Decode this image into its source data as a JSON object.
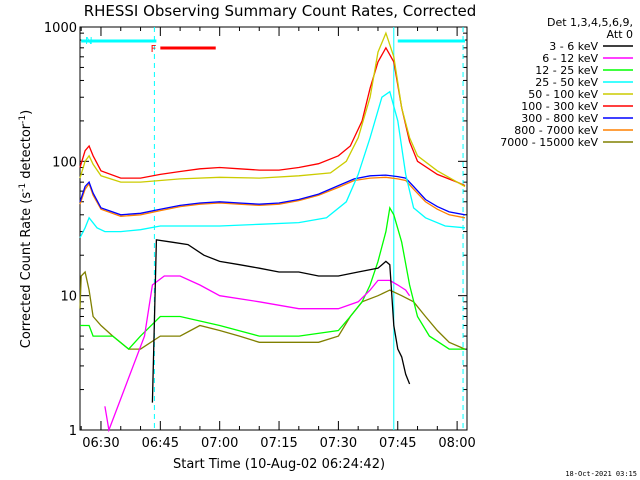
{
  "chart_data": {
    "type": "line",
    "title": "RHESSI Observing Summary Count Rates, Corrected",
    "xlabel": "Start Time (10-Aug-02 06:24:42)",
    "ylabel": "Corrected Count Rate (s",
    "ylabel_sup1": "-1",
    "ylabel_mid": " detector",
    "ylabel_sup2": "-1",
    "ylabel_end": ")",
    "y_scale": "log",
    "ylim": [
      1,
      1000
    ],
    "xlim": [
      "06:24:42",
      "08:02:30"
    ],
    "x_ticks": [
      "06:30",
      "06:45",
      "07:00",
      "07:15",
      "07:30",
      "07:45",
      "08:00"
    ],
    "y_ticks": [
      "1",
      "10",
      "100",
      "1000"
    ],
    "legend_header": [
      "Det 1,3,4,5,6,9,",
      "Att 0"
    ],
    "legend_position": "right",
    "timestamp": "18-Oct-2021 03:15",
    "flags": [
      {
        "label": "F",
        "color": "#ff0000",
        "start": "06:45",
        "end": "06:59"
      },
      {
        "label": "N",
        "color": "#00ffff",
        "start": "06:25",
        "end": "06:44"
      },
      {
        "label": "",
        "color": "#00ffff",
        "start": "07:45",
        "end": "08:02"
      }
    ],
    "vertical_lines": [
      {
        "time": "06:43:30",
        "style": "dashed",
        "color": "#00ffff"
      },
      {
        "time": "07:44:00",
        "style": "solid",
        "color": "#00ffff"
      },
      {
        "time": "08:01:30",
        "style": "dashed",
        "color": "#00ffff"
      }
    ],
    "series": [
      {
        "name": "3 - 6 keV",
        "color": "#000000",
        "points": [
          [
            "06:43",
            1.6
          ],
          [
            "06:44",
            26
          ],
          [
            "06:48",
            25
          ],
          [
            "06:52",
            24
          ],
          [
            "06:56",
            20
          ],
          [
            "07:00",
            18
          ],
          [
            "07:05",
            17
          ],
          [
            "07:10",
            16
          ],
          [
            "07:15",
            15
          ],
          [
            "07:20",
            15
          ],
          [
            "07:25",
            14
          ],
          [
            "07:30",
            14
          ],
          [
            "07:35",
            15
          ],
          [
            "07:40",
            16
          ],
          [
            "07:42",
            18
          ],
          [
            "07:43",
            17
          ],
          [
            "07:44",
            6
          ],
          [
            "07:45",
            4
          ],
          [
            "07:46",
            3.5
          ],
          [
            "07:47",
            2.6
          ],
          [
            "07:48",
            2.2
          ]
        ]
      },
      {
        "name": "6 - 12 keV",
        "color": "#ff00ff",
        "points": [
          [
            "06:31",
            1.5
          ],
          [
            "06:32",
            1
          ],
          [
            "06:41",
            5
          ],
          [
            "06:43",
            12
          ],
          [
            "06:46",
            14
          ],
          [
            "06:50",
            14
          ],
          [
            "06:55",
            12
          ],
          [
            "07:00",
            10
          ],
          [
            "07:10",
            9
          ],
          [
            "07:20",
            8
          ],
          [
            "07:30",
            8
          ],
          [
            "07:35",
            9
          ],
          [
            "07:38",
            11
          ],
          [
            "07:40",
            13
          ],
          [
            "07:43",
            13
          ],
          [
            "07:45",
            12
          ],
          [
            "07:47",
            11
          ],
          [
            "07:48",
            10
          ]
        ]
      },
      {
        "name": "12 - 25 keV",
        "color": "#00ff00",
        "points": [
          [
            "06:24:42",
            6
          ],
          [
            "06:27",
            6
          ],
          [
            "06:28",
            5
          ],
          [
            "06:33",
            5
          ],
          [
            "06:37",
            4
          ],
          [
            "06:40",
            5
          ],
          [
            "06:45",
            7
          ],
          [
            "06:50",
            7
          ],
          [
            "07:00",
            6
          ],
          [
            "07:10",
            5
          ],
          [
            "07:20",
            5
          ],
          [
            "07:30",
            5.5
          ],
          [
            "07:33",
            7
          ],
          [
            "07:36",
            9
          ],
          [
            "07:38",
            12
          ],
          [
            "07:40",
            18
          ],
          [
            "07:42",
            30
          ],
          [
            "07:43",
            45
          ],
          [
            "07:44",
            40
          ],
          [
            "07:46",
            25
          ],
          [
            "07:48",
            12
          ],
          [
            "07:50",
            7
          ],
          [
            "07:53",
            5
          ],
          [
            "07:58",
            4
          ],
          [
            "08:02",
            4
          ]
        ]
      },
      {
        "name": "25 - 50 keV",
        "color": "#00ffff",
        "points": [
          [
            "06:24:42",
            27
          ],
          [
            "06:26",
            32
          ],
          [
            "06:27",
            38
          ],
          [
            "06:29",
            32
          ],
          [
            "06:31",
            30
          ],
          [
            "06:35",
            30
          ],
          [
            "06:40",
            31
          ],
          [
            "06:45",
            33
          ],
          [
            "06:50",
            33
          ],
          [
            "07:00",
            33
          ],
          [
            "07:10",
            34
          ],
          [
            "07:20",
            35
          ],
          [
            "07:27",
            38
          ],
          [
            "07:32",
            50
          ],
          [
            "07:35",
            80
          ],
          [
            "07:38",
            150
          ],
          [
            "07:41",
            300
          ],
          [
            "07:43",
            330
          ],
          [
            "07:45",
            200
          ],
          [
            "07:47",
            80
          ],
          [
            "07:49",
            45
          ],
          [
            "07:52",
            38
          ],
          [
            "07:57",
            33
          ],
          [
            "08:02",
            32
          ]
        ]
      },
      {
        "name": "50 - 100 keV",
        "color": "#cccc00",
        "points": [
          [
            "06:24:42",
            75
          ],
          [
            "06:26",
            100
          ],
          [
            "06:27",
            110
          ],
          [
            "06:28",
            95
          ],
          [
            "06:30",
            78
          ],
          [
            "06:35",
            70
          ],
          [
            "06:40",
            70
          ],
          [
            "06:45",
            72
          ],
          [
            "06:50",
            74
          ],
          [
            "07:00",
            76
          ],
          [
            "07:10",
            75
          ],
          [
            "07:20",
            78
          ],
          [
            "07:28",
            82
          ],
          [
            "07:32",
            100
          ],
          [
            "07:35",
            150
          ],
          [
            "07:38",
            300
          ],
          [
            "07:40",
            650
          ],
          [
            "07:42",
            900
          ],
          [
            "07:44",
            600
          ],
          [
            "07:46",
            250
          ],
          [
            "07:48",
            150
          ],
          [
            "07:50",
            110
          ],
          [
            "07:55",
            85
          ],
          [
            "08:00",
            70
          ],
          [
            "08:02",
            65
          ]
        ]
      },
      {
        "name": "100 - 300 keV",
        "color": "#ff0000",
        "points": [
          [
            "06:24:42",
            90
          ],
          [
            "06:26",
            120
          ],
          [
            "06:27",
            130
          ],
          [
            "06:28",
            110
          ],
          [
            "06:30",
            85
          ],
          [
            "06:35",
            75
          ],
          [
            "06:40",
            75
          ],
          [
            "06:45",
            80
          ],
          [
            "06:50",
            84
          ],
          [
            "06:55",
            88
          ],
          [
            "07:00",
            90
          ],
          [
            "07:05",
            88
          ],
          [
            "07:10",
            86
          ],
          [
            "07:15",
            86
          ],
          [
            "07:20",
            90
          ],
          [
            "07:25",
            96
          ],
          [
            "07:30",
            110
          ],
          [
            "07:33",
            130
          ],
          [
            "07:36",
            200
          ],
          [
            "07:38",
            350
          ],
          [
            "07:40",
            550
          ],
          [
            "07:42",
            700
          ],
          [
            "07:44",
            550
          ],
          [
            "07:46",
            250
          ],
          [
            "07:48",
            140
          ],
          [
            "07:50",
            100
          ],
          [
            "07:55",
            80
          ],
          [
            "08:00",
            70
          ],
          [
            "08:02",
            66
          ]
        ]
      },
      {
        "name": "300 - 800 keV",
        "color": "#0000ff",
        "points": [
          [
            "06:24:42",
            50
          ],
          [
            "06:26",
            65
          ],
          [
            "06:27",
            70
          ],
          [
            "06:28",
            58
          ],
          [
            "06:30",
            45
          ],
          [
            "06:35",
            40
          ],
          [
            "06:40",
            41
          ],
          [
            "06:45",
            44
          ],
          [
            "06:50",
            47
          ],
          [
            "06:55",
            49
          ],
          [
            "07:00",
            50
          ],
          [
            "07:05",
            49
          ],
          [
            "07:10",
            48
          ],
          [
            "07:15",
            49
          ],
          [
            "07:20",
            52
          ],
          [
            "07:25",
            57
          ],
          [
            "07:30",
            66
          ],
          [
            "07:34",
            74
          ],
          [
            "07:38",
            78
          ],
          [
            "07:42",
            79
          ],
          [
            "07:45",
            77
          ],
          [
            "07:47",
            75
          ],
          [
            "07:49",
            65
          ],
          [
            "07:52",
            52
          ],
          [
            "07:55",
            46
          ],
          [
            "07:58",
            42
          ],
          [
            "08:02",
            40
          ]
        ]
      },
      {
        "name": "800 - 7000 keV",
        "color": "#ff8000",
        "points": [
          [
            "06:24:42",
            48
          ],
          [
            "06:26",
            62
          ],
          [
            "06:27",
            68
          ],
          [
            "06:28",
            56
          ],
          [
            "06:30",
            44
          ],
          [
            "06:35",
            39
          ],
          [
            "06:40",
            40
          ],
          [
            "06:45",
            43
          ],
          [
            "06:50",
            46
          ],
          [
            "06:55",
            48
          ],
          [
            "07:00",
            49
          ],
          [
            "07:05",
            48
          ],
          [
            "07:10",
            47
          ],
          [
            "07:15",
            48
          ],
          [
            "07:20",
            51
          ],
          [
            "07:25",
            56
          ],
          [
            "07:30",
            64
          ],
          [
            "07:34",
            72
          ],
          [
            "07:38",
            75
          ],
          [
            "07:42",
            76
          ],
          [
            "07:45",
            74
          ],
          [
            "07:47",
            72
          ],
          [
            "07:49",
            62
          ],
          [
            "07:52",
            50
          ],
          [
            "07:55",
            44
          ],
          [
            "07:58",
            40
          ],
          [
            "08:02",
            38
          ]
        ]
      },
      {
        "name": "7000 - 15000 keV",
        "color": "#808000",
        "points": [
          [
            "06:24:42",
            8
          ],
          [
            "06:25",
            14
          ],
          [
            "06:26",
            15
          ],
          [
            "06:27",
            11
          ],
          [
            "06:28",
            7
          ],
          [
            "06:30",
            6
          ],
          [
            "06:33",
            5
          ],
          [
            "06:37",
            4
          ],
          [
            "06:40",
            4
          ],
          [
            "06:45",
            5
          ],
          [
            "06:50",
            5
          ],
          [
            "06:55",
            6
          ],
          [
            "07:00",
            5.5
          ],
          [
            "07:05",
            5
          ],
          [
            "07:10",
            4.5
          ],
          [
            "07:15",
            4.5
          ],
          [
            "07:20",
            4.5
          ],
          [
            "07:25",
            4.5
          ],
          [
            "07:30",
            5
          ],
          [
            "07:33",
            7
          ],
          [
            "07:36",
            9
          ],
          [
            "07:40",
            10
          ],
          [
            "07:43",
            11
          ],
          [
            "07:46",
            10
          ],
          [
            "07:49",
            9
          ],
          [
            "07:52",
            7
          ],
          [
            "07:55",
            5.5
          ],
          [
            "07:58",
            4.5
          ],
          [
            "08:02",
            4
          ]
        ]
      }
    ]
  }
}
